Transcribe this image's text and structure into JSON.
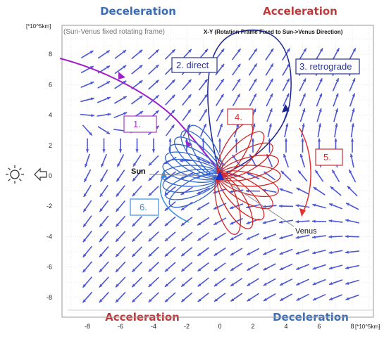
{
  "headers": {
    "top_left": "Deceleration",
    "top_right": "Acceleration",
    "bottom_left": "Acceleration",
    "bottom_right": "Deceleration"
  },
  "frame_note": "(Sun-Venus fixed rotating frame)",
  "plot_title": "X-Y (Rotation Frame Fixed to Sun->Venus Direction)",
  "axis_units": {
    "y": "[*10^5km]",
    "x": "[*10^5km]"
  },
  "x_ticks": [
    "-8",
    "-6",
    "-4",
    "-2",
    "0",
    "2",
    "4",
    "6",
    "8"
  ],
  "y_ticks": [
    "8",
    "6",
    "4",
    "2",
    "0",
    "-2",
    "-4",
    "-6",
    "-8"
  ],
  "labels": {
    "l1": "1.",
    "l2": "2. direct",
    "l3": "3. retrograde",
    "l4": "4.",
    "l5": "5.",
    "l6": "6.",
    "sun": "Sun",
    "venus": "Venus"
  },
  "colors": {
    "header_blue": "#3a6db5",
    "header_red": "#c0393b",
    "arrow_field": "#4b55d6",
    "trajectory_purple": "#a020c8",
    "loop_navy": "#1c2790",
    "loops_blue": "#3366cc",
    "loops_red": "#d02828",
    "box_purple": "#a63cc4",
    "box_navy": "#2a3590",
    "box_red": "#d03030",
    "box_lightblue": "#3b8ee0"
  },
  "icons": [
    "sun-icon",
    "left-arrow-icon"
  ]
}
